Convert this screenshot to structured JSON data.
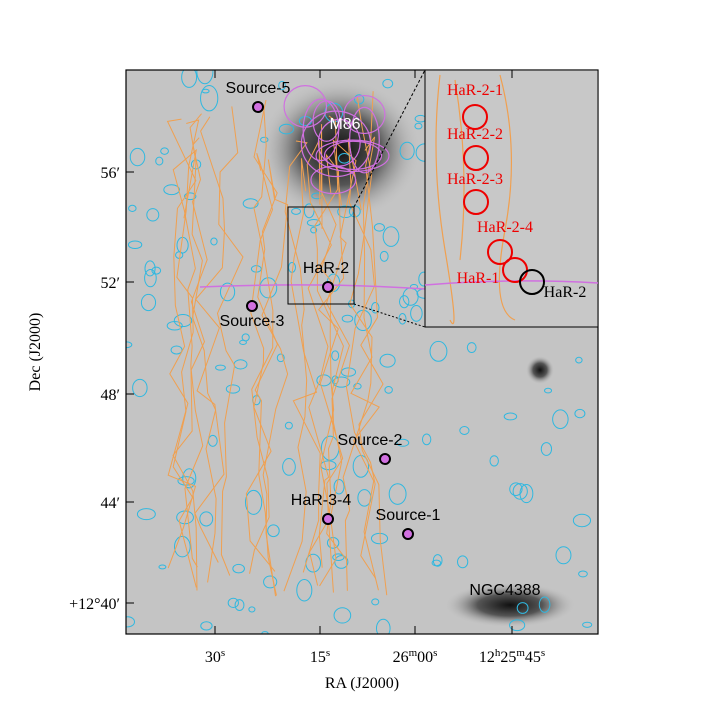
{
  "axes": {
    "x_label": "RA (J2000)",
    "y_label": "Dec (J2000)",
    "x_ticks": [
      [
        {
          "t": "30"
        },
        {
          "t": "s",
          "sup": true
        }
      ],
      [
        {
          "t": "15"
        },
        {
          "t": "s",
          "sup": true
        }
      ],
      [
        {
          "t": "26"
        },
        {
          "t": "m",
          "sup": true
        },
        {
          "t": "00"
        },
        {
          "t": "s",
          "sup": true
        }
      ],
      [
        {
          "t": "12"
        },
        {
          "t": "h",
          "sup": true
        },
        {
          "t": "25"
        },
        {
          "t": "m",
          "sup": true
        },
        {
          "t": "45"
        },
        {
          "t": "s",
          "sup": true
        }
      ]
    ],
    "y_ticks": [
      "56′",
      "52′",
      "48′",
      "44′",
      "+12°40′"
    ]
  },
  "labels": [
    "Source-5",
    "M86",
    "HaR-2",
    "Source-3",
    "Source-2",
    "HaR-3-4",
    "Source-1",
    "NGC4388"
  ],
  "inset_labels": [
    "HaR-2-1",
    "HaR-2-2",
    "HaR-2-3",
    "HaR-2-4",
    "HaR-1",
    "HaR-2"
  ]
}
